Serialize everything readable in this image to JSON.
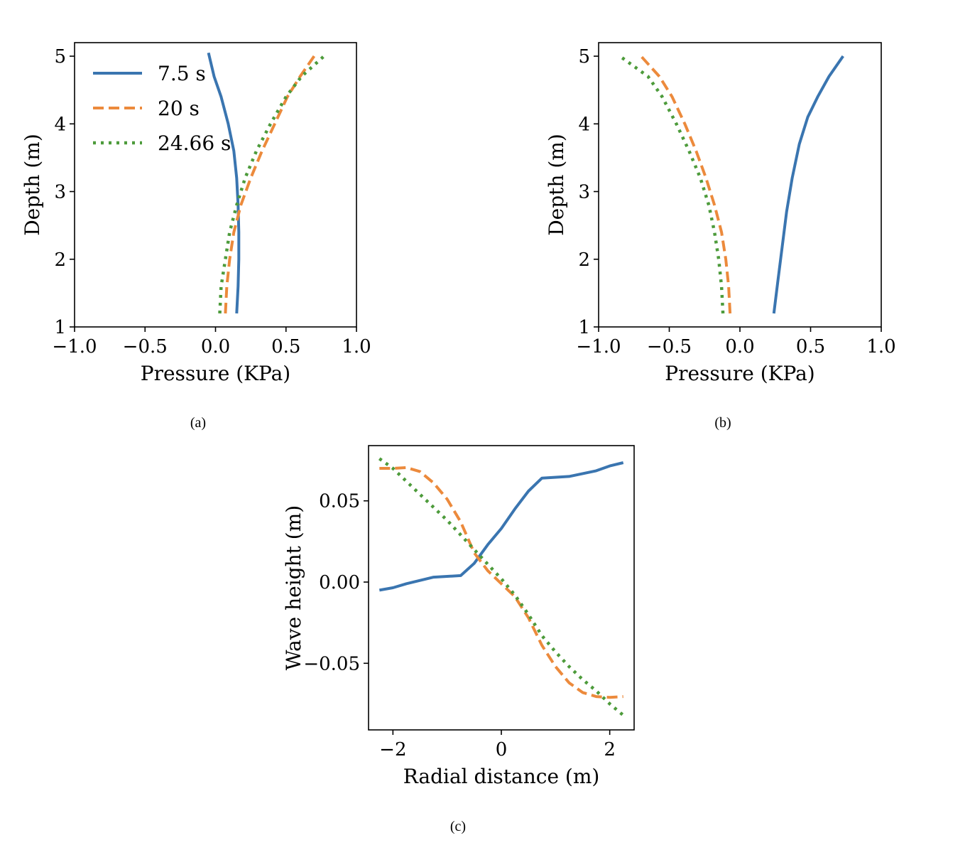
{
  "colors": {
    "series1": "#3a75b0",
    "series2": "#ec8a3c",
    "series3": "#4d9b3b"
  },
  "captions": [
    "(a)",
    "(b)",
    "(c)"
  ],
  "chart_data": [
    {
      "type": "line",
      "panel": "a",
      "xlabel": "Pressure (KPa)",
      "ylabel": "Depth (m)",
      "xlim": [
        -1.0,
        1.0
      ],
      "ylim": [
        1,
        5.2
      ],
      "xticks": [
        "−1.0",
        "−0.5",
        "0.0",
        "0.5",
        "1.0"
      ],
      "yticks": [
        "1",
        "2",
        "3",
        "4",
        "5"
      ],
      "legend": {
        "placement": "top-left",
        "entries": [
          "7.5 s",
          "20 s",
          "24.66 s"
        ]
      },
      "series": [
        {
          "name": "7.5 s",
          "style": "solid",
          "x": [
            0.15,
            0.16,
            0.165,
            0.165,
            0.16,
            0.15,
            0.13,
            0.09,
            0.04,
            -0.01,
            -0.05
          ],
          "y": [
            1.2,
            1.6,
            2.0,
            2.4,
            2.8,
            3.2,
            3.6,
            4.0,
            4.4,
            4.7,
            5.05
          ]
        },
        {
          "name": "20 s",
          "style": "dashed",
          "x": [
            0.07,
            0.08,
            0.1,
            0.13,
            0.18,
            0.25,
            0.33,
            0.42,
            0.51,
            0.6,
            0.7
          ],
          "y": [
            1.2,
            1.6,
            2.0,
            2.4,
            2.8,
            3.2,
            3.6,
            4.0,
            4.4,
            4.7,
            5.0
          ]
        },
        {
          "name": "24.66 s",
          "style": "dotted",
          "x": [
            0.03,
            0.04,
            0.07,
            0.1,
            0.15,
            0.21,
            0.29,
            0.39,
            0.5,
            0.61,
            0.77
          ],
          "y": [
            1.2,
            1.6,
            2.0,
            2.4,
            2.8,
            3.2,
            3.6,
            4.0,
            4.4,
            4.7,
            5.0
          ]
        }
      ]
    },
    {
      "type": "line",
      "panel": "b",
      "xlabel": "Pressure (KPa)",
      "ylabel": "Depth (m)",
      "xlim": [
        -1.0,
        1.0
      ],
      "ylim": [
        1,
        5.2
      ],
      "xticks": [
        "−1.0",
        "−0.5",
        "0.0",
        "0.5",
        "1.0"
      ],
      "yticks": [
        "1",
        "2",
        "3",
        "4",
        "5"
      ],
      "series": [
        {
          "style": "solid",
          "x": [
            0.24,
            0.27,
            0.3,
            0.33,
            0.37,
            0.42,
            0.48,
            0.55,
            0.63,
            0.73
          ],
          "y": [
            1.2,
            1.7,
            2.2,
            2.7,
            3.2,
            3.7,
            4.1,
            4.4,
            4.7,
            5.0
          ]
        },
        {
          "style": "dashed",
          "x": [
            -0.07,
            -0.08,
            -0.1,
            -0.13,
            -0.18,
            -0.24,
            -0.31,
            -0.39,
            -0.48,
            -0.57,
            -0.7
          ],
          "y": [
            1.2,
            1.6,
            2.0,
            2.4,
            2.8,
            3.2,
            3.6,
            4.0,
            4.4,
            4.7,
            5.0
          ]
        },
        {
          "style": "dotted",
          "x": [
            -0.12,
            -0.13,
            -0.15,
            -0.18,
            -0.22,
            -0.28,
            -0.36,
            -0.45,
            -0.55,
            -0.65,
            -0.85
          ],
          "y": [
            1.2,
            1.6,
            2.0,
            2.4,
            2.8,
            3.2,
            3.6,
            4.0,
            4.4,
            4.7,
            5.0
          ]
        }
      ]
    },
    {
      "type": "line",
      "panel": "c",
      "xlabel": "Radial distance (m)",
      "ylabel": "Wave height (m)",
      "xlim": [
        -2.45,
        2.45
      ],
      "ylim": [
        -0.091,
        0.084
      ],
      "xtick_values": [
        -2,
        0,
        2
      ],
      "xticks": [
        "−2",
        "0",
        "2"
      ],
      "ytick_values": [
        0.05,
        0.0,
        -0.05
      ],
      "yticks": [
        "0.05",
        "0.00",
        "−0.05"
      ],
      "series": [
        {
          "style": "solid",
          "x": [
            -2.25,
            -2.0,
            -1.75,
            -1.25,
            -0.75,
            -0.5,
            -0.25,
            0.0,
            0.25,
            0.5,
            0.75,
            1.25,
            1.75,
            2.0,
            2.25
          ],
          "y": [
            -0.005,
            -0.0035,
            -0.001,
            0.003,
            0.004,
            0.0115,
            0.023,
            0.033,
            0.045,
            0.056,
            0.064,
            0.065,
            0.0685,
            0.0715,
            0.0735
          ]
        },
        {
          "style": "dashed",
          "x": [
            -2.25,
            -2.0,
            -1.75,
            -1.5,
            -1.25,
            -1.0,
            -0.75,
            -0.5,
            -0.25,
            0.0,
            0.25,
            0.5,
            0.75,
            1.0,
            1.25,
            1.5,
            1.75,
            2.0,
            2.25
          ],
          "y": [
            0.07,
            0.07,
            0.0705,
            0.068,
            0.061,
            0.051,
            0.037,
            0.018,
            0.007,
            -0.001,
            -0.009,
            -0.022,
            -0.039,
            -0.052,
            -0.062,
            -0.068,
            -0.0705,
            -0.071,
            -0.0705
          ]
        },
        {
          "style": "dotted",
          "x": [
            -2.25,
            -2.0,
            -1.75,
            -1.5,
            -1.25,
            -1.0,
            -0.75,
            -0.5,
            -0.25,
            0.0,
            0.25,
            0.5,
            0.75,
            1.0,
            1.25,
            1.5,
            1.75,
            2.0,
            2.25
          ],
          "y": [
            0.076,
            0.07,
            0.062,
            0.054,
            0.046,
            0.038,
            0.029,
            0.02,
            0.011,
            0.002,
            -0.008,
            -0.02,
            -0.033,
            -0.043,
            -0.052,
            -0.06,
            -0.067,
            -0.075,
            -0.082
          ]
        }
      ]
    }
  ]
}
